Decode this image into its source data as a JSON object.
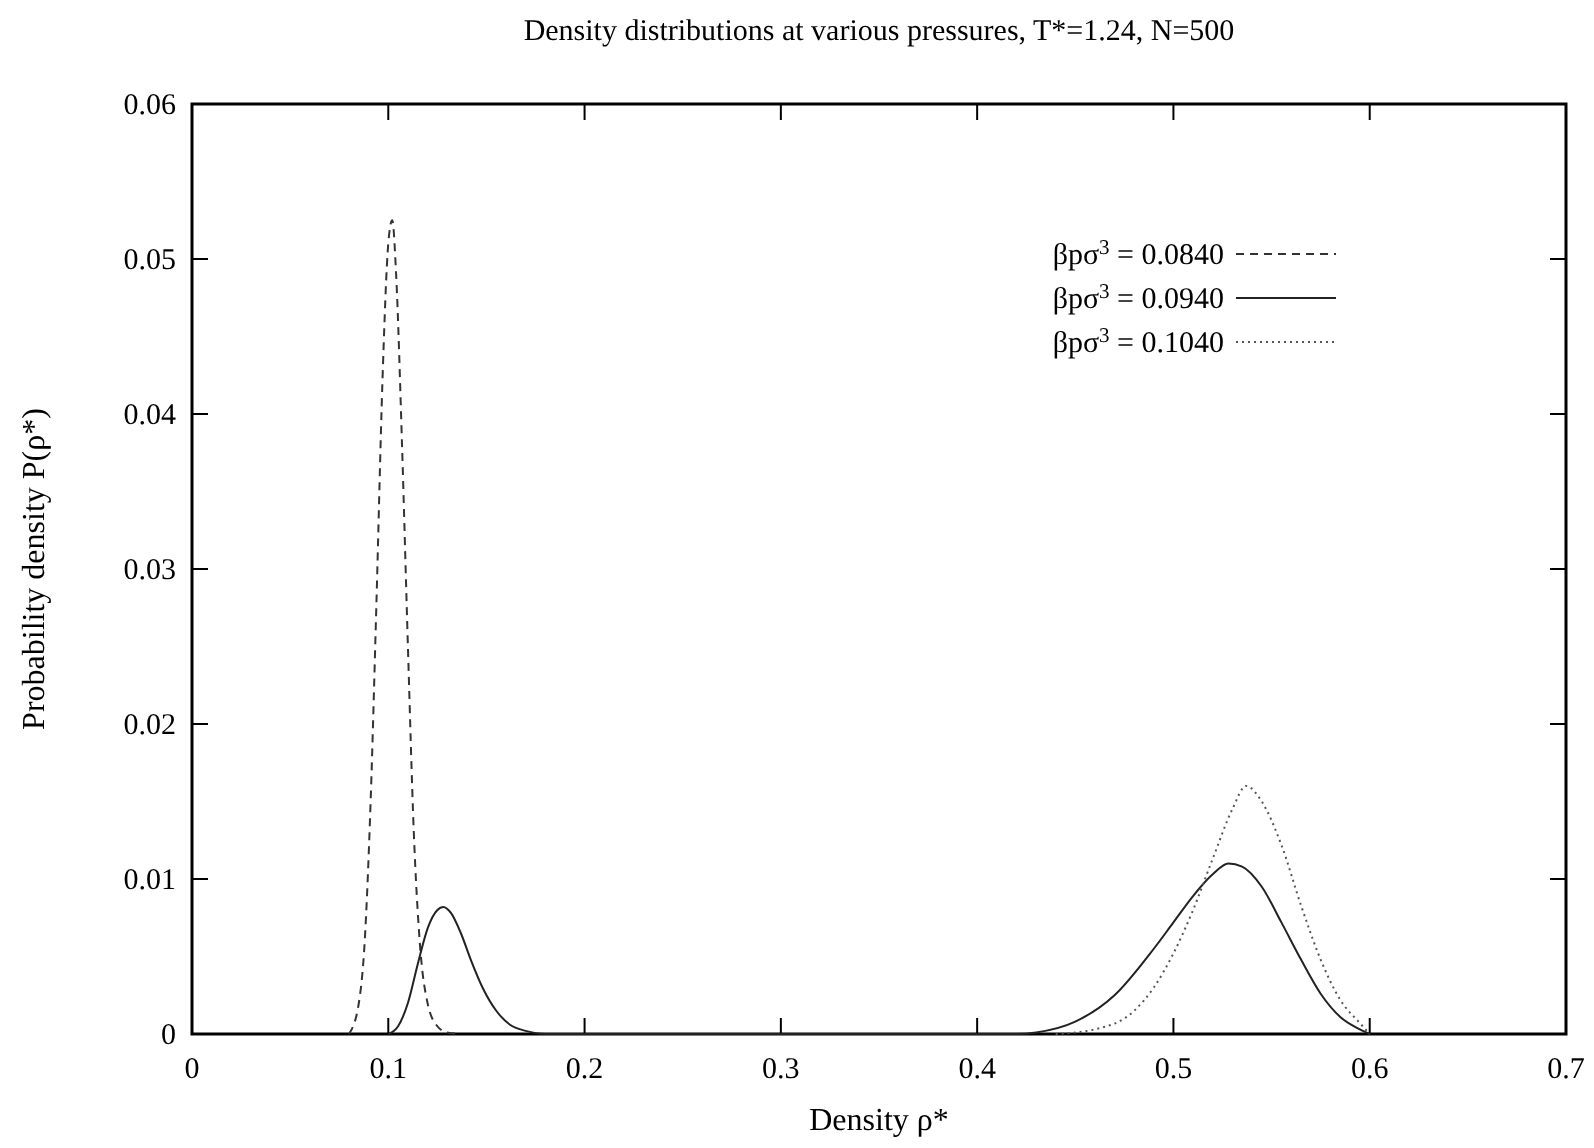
{
  "chart_data": {
    "type": "line",
    "title": "Density distributions at various pressures, T*=1.24, N=500",
    "xlabel": "Density ρ*",
    "ylabel": "Probability density P(ρ*)",
    "xlim": [
      0,
      0.7
    ],
    "xticks": [
      0,
      0.1,
      0.2,
      0.3,
      0.4,
      0.5,
      0.6,
      0.7
    ],
    "ylim": [
      0,
      0.06
    ],
    "yticks": [
      0,
      0.01,
      0.02,
      0.03,
      0.04,
      0.05,
      0.06
    ],
    "grid": false,
    "legend": "top right",
    "series": [
      {
        "name": "βpσ$^{3}$ = 0.0840",
        "color": "#333333",
        "line_style": "dashed",
        "x": [
          0.08,
          0.085,
          0.088,
          0.091,
          0.094,
          0.097,
          0.1,
          0.102,
          0.104,
          0.107,
          0.11,
          0.113,
          0.116,
          0.12,
          0.125,
          0.13,
          0.137
        ],
        "values": [
          0,
          0.002,
          0.006,
          0.015,
          0.028,
          0.042,
          0.051,
          0.0525,
          0.049,
          0.038,
          0.025,
          0.013,
          0.006,
          0.002,
          0.0005,
          0.0001,
          0
        ]
      },
      {
        "name": "βpσ$^{3}$ = 0.0940",
        "color": "#222222",
        "line_style": "solid",
        "x": [
          0.1,
          0.105,
          0.11,
          0.115,
          0.12,
          0.125,
          0.128,
          0.132,
          0.137,
          0.142,
          0.148,
          0.155,
          0.162,
          0.17,
          0.18,
          0.42,
          0.43,
          0.45,
          0.47,
          0.49,
          0.5,
          0.51,
          0.52,
          0.528,
          0.535,
          0.545,
          0.555,
          0.565,
          0.575,
          0.585,
          0.595,
          0.6
        ],
        "values": [
          0,
          0.0005,
          0.002,
          0.0045,
          0.0068,
          0.008,
          0.0082,
          0.0078,
          0.0065,
          0.0048,
          0.003,
          0.0015,
          0.0006,
          0.0002,
          0,
          0,
          0.0001,
          0.0008,
          0.0025,
          0.0055,
          0.0072,
          0.0089,
          0.0103,
          0.011,
          0.0108,
          0.0095,
          0.0072,
          0.0048,
          0.0026,
          0.0011,
          0.0003,
          0
        ]
      },
      {
        "name": "βpσ$^{3}$ = 0.1040",
        "color": "#555555",
        "line_style": "dotted",
        "x": [
          0.44,
          0.46,
          0.48,
          0.49,
          0.5,
          0.51,
          0.52,
          0.53,
          0.537,
          0.545,
          0.555,
          0.565,
          0.575,
          0.585,
          0.595,
          0.6
        ],
        "values": [
          0,
          0.0003,
          0.0015,
          0.003,
          0.0052,
          0.008,
          0.0113,
          0.0145,
          0.016,
          0.015,
          0.0122,
          0.0083,
          0.0048,
          0.0022,
          0.0007,
          0
        ]
      }
    ]
  }
}
